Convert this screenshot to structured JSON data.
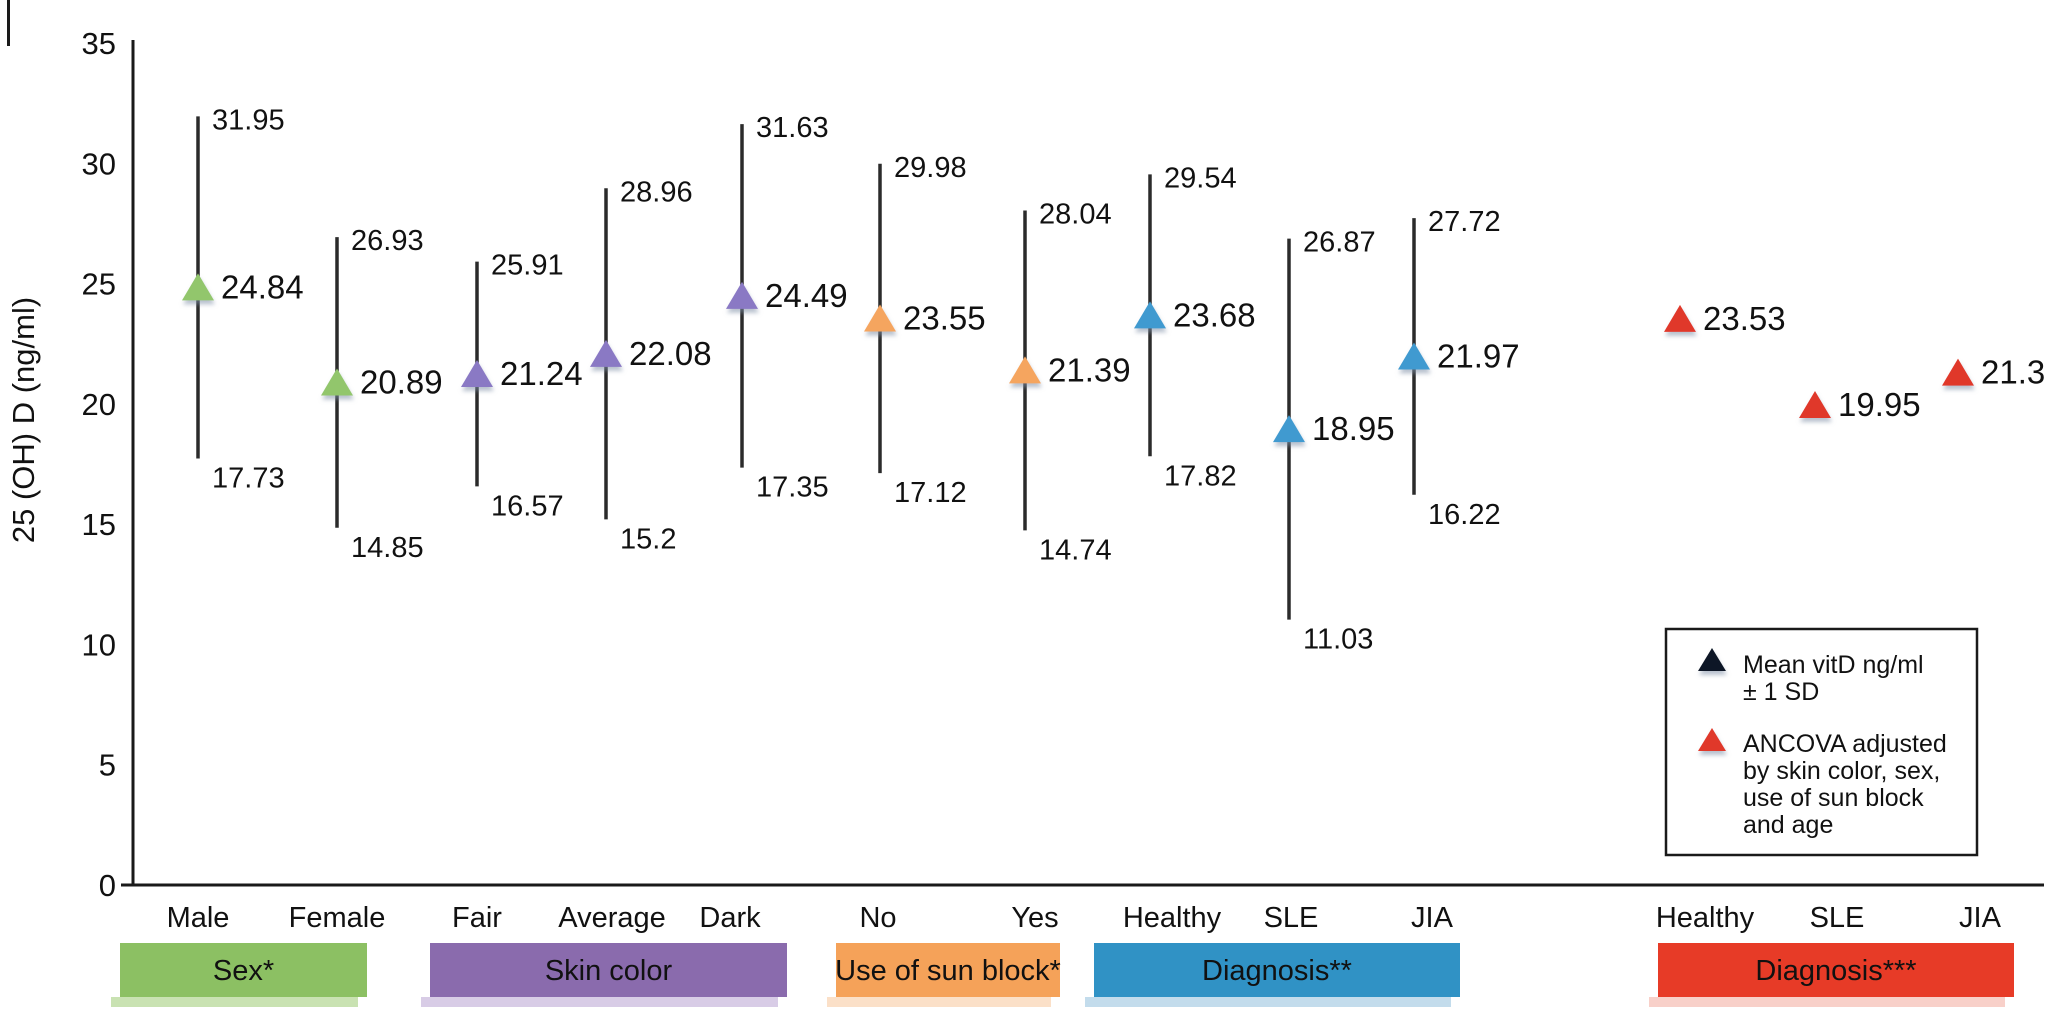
{
  "chart_data": {
    "type": "scatter",
    "title": "",
    "ylabel": "25 (OH) D (ng/ml)",
    "ylim": [
      0,
      35
    ],
    "yticks": [
      0,
      5,
      10,
      15,
      20,
      25,
      30,
      35
    ],
    "grid": false,
    "marker": "triangle",
    "groups": [
      {
        "name": "Sex*",
        "band_color": "#8cc063",
        "band_shadow_color": "#c9e2b2",
        "marker_color": "#92c66c",
        "categories": [
          {
            "label": "Male",
            "mean": 24.84,
            "upper": 31.95,
            "lower": 17.73
          },
          {
            "label": "Female",
            "mean": 20.89,
            "upper": 26.93,
            "lower": 14.85
          }
        ]
      },
      {
        "name": "Skin color",
        "band_color": "#8a6bad",
        "band_shadow_color": "#d8cce6",
        "marker_color": "#8a79c4",
        "categories": [
          {
            "label": "Fair",
            "mean": 21.24,
            "upper": 25.91,
            "lower": 16.57
          },
          {
            "label": "Average",
            "mean": 22.08,
            "upper": 28.96,
            "lower": 15.2
          },
          {
            "label": "Dark",
            "mean": 24.49,
            "upper": 31.63,
            "lower": 17.35
          }
        ]
      },
      {
        "name": "Use of sun block*",
        "band_color": "#f5a259",
        "band_shadow_color": "#fbe0c8",
        "marker_color": "#f5a55e",
        "categories": [
          {
            "label": "No",
            "mean": 23.55,
            "upper": 29.98,
            "lower": 17.12
          },
          {
            "label": "Yes",
            "mean": 21.39,
            "upper": 28.04,
            "lower": 14.74
          }
        ]
      },
      {
        "name": "Diagnosis**",
        "band_color": "#3092c5",
        "band_shadow_color": "#c3dcec",
        "marker_color": "#3f9ad0",
        "categories": [
          {
            "label": "Healthy",
            "mean": 23.68,
            "upper": 29.54,
            "lower": 17.82
          },
          {
            "label": "SLE",
            "mean": 18.95,
            "upper": 26.87,
            "lower": 11.03
          },
          {
            "label": "JIA",
            "mean": 21.97,
            "upper": 27.72,
            "lower": 16.22
          }
        ]
      },
      {
        "name": "Diagnosis***",
        "band_color": "#e73b27",
        "band_shadow_color": "#f8d0c9",
        "marker_color": "#e0392a",
        "categories": [
          {
            "label": "Healthy",
            "mean": 23.53
          },
          {
            "label": "SLE",
            "mean": 19.95
          },
          {
            "label": "JIA",
            "mean": 21.3
          }
        ]
      }
    ],
    "legend": {
      "position": "bottom-right",
      "items": [
        {
          "marker": "triangle",
          "marker_color": "#111826",
          "lines": [
            "Mean vitD ng/ml",
            "± 1 SD"
          ]
        },
        {
          "marker": "triangle",
          "marker_color": "#e0392a",
          "lines": [
            "ANCOVA adjusted",
            "by skin color, sex,",
            "use of sun block",
            "and age"
          ]
        }
      ]
    }
  }
}
